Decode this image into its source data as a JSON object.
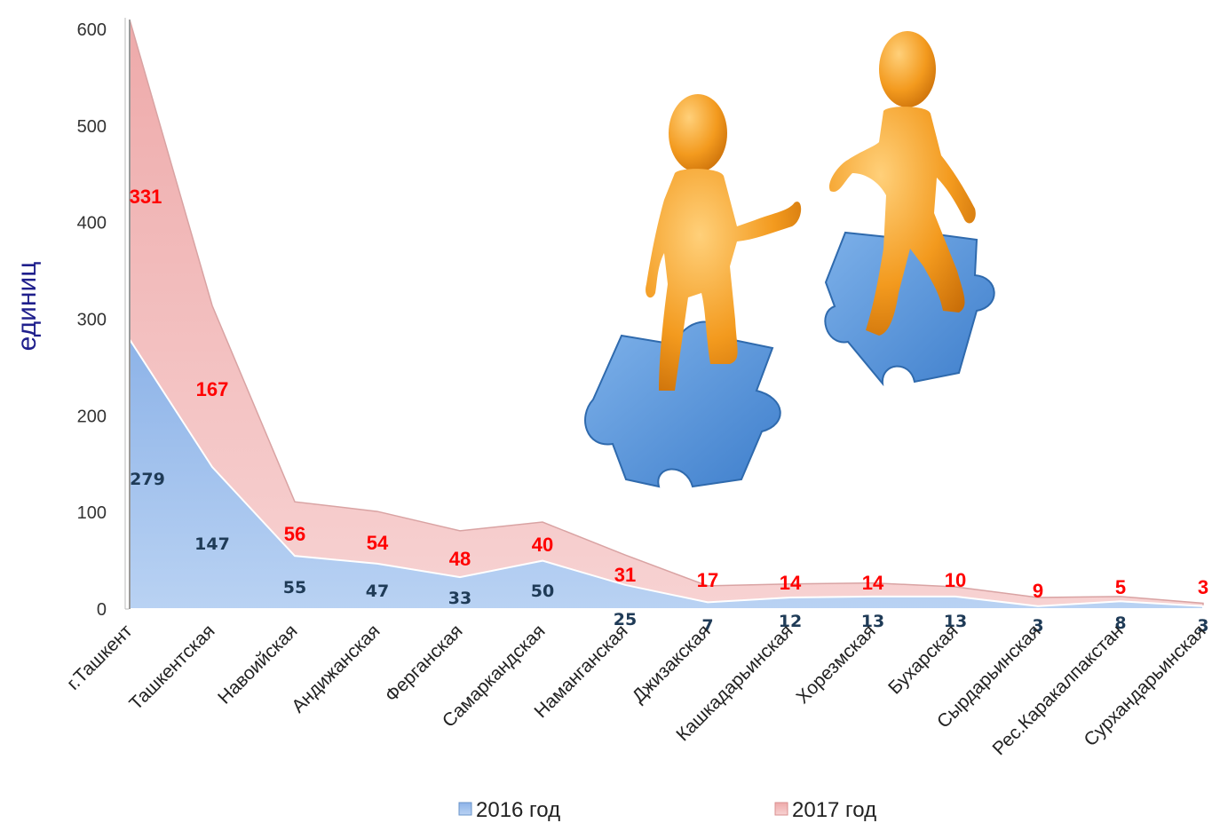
{
  "chart_data": {
    "type": "area",
    "stacked": true,
    "ylabel": "единиц",
    "ylim": [
      0,
      600
    ],
    "yticks": [
      "0",
      "100",
      "200",
      "300",
      "400",
      "500",
      "600"
    ],
    "categories": [
      "г.Ташкент",
      "Ташкентская",
      "Навоийская",
      "Андижанская",
      "Ферганская",
      "Самаркандская",
      "Наманганская",
      "Джизакская",
      "Кашкадарьинская",
      "Хорезмская",
      "Бухарская",
      "Сырдарьинская",
      "Рес.Каракалпакстан",
      "Сурхандарьинская"
    ],
    "series": [
      {
        "name": "2016 год",
        "values": [
          279,
          147,
          55,
          47,
          33,
          50,
          25,
          7,
          12,
          13,
          13,
          3,
          8,
          3
        ],
        "color": "#8fb5e6"
      },
      {
        "name": "2017 год",
        "values": [
          331,
          167,
          56,
          54,
          48,
          40,
          31,
          17,
          14,
          14,
          10,
          9,
          5,
          3
        ],
        "color": "#f2bcbc"
      }
    ],
    "grid": false,
    "legend": "bottom"
  },
  "colors": {
    "label_2016": "#1f3b57",
    "label_2017": "#ff0000"
  },
  "illustration": {
    "icon": "two-figures-on-puzzle-pieces-icon"
  }
}
